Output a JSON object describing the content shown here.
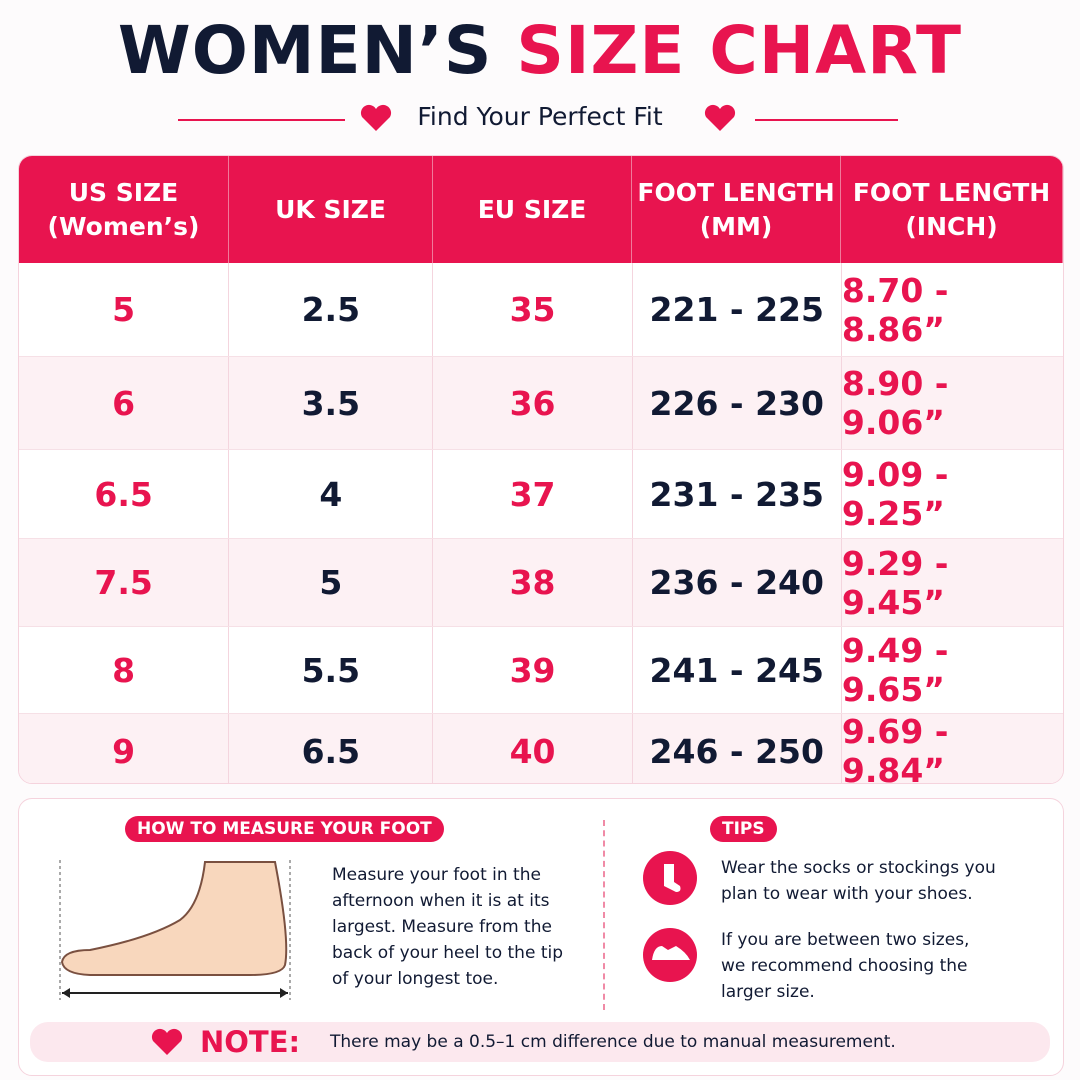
{
  "title": {
    "part1": "WOMEN’S",
    "part2": "SIZE CHART"
  },
  "subtitle": "Find Your Perfect Fit",
  "table": {
    "headers": [
      [
        "US SIZE",
        "(Women’s)"
      ],
      [
        "UK SIZE"
      ],
      [
        "EU SIZE"
      ],
      [
        "FOOT LENGTH",
        "(MM)"
      ],
      [
        "FOOT LENGTH",
        "(INCH)"
      ]
    ],
    "rows": [
      [
        "5",
        "2.5",
        "35",
        "221 - 225",
        "8.70 - 8.86”"
      ],
      [
        "6",
        "3.5",
        "36",
        "226 - 230",
        "8.90 - 9.06”"
      ],
      [
        "6.5",
        "4",
        "37",
        "231 - 235",
        "9.09 - 9.25”"
      ],
      [
        "7.5",
        "5",
        "38",
        "236 - 240",
        "9.29 - 9.45”"
      ],
      [
        "8",
        "5.5",
        "39",
        "241 - 245",
        "9.49 - 9.65”"
      ],
      [
        "9",
        "6.5",
        "40",
        "246 - 250",
        "9.69 - 9.84”"
      ]
    ]
  },
  "measure": {
    "heading": "HOW TO MEASURE YOUR FOOT",
    "text": "Measure your foot in the afternoon when it is at its largest. Measure from the back of your heel to the tip of your longest toe."
  },
  "tips": {
    "heading": "TIPS",
    "items": [
      "Wear the socks or stockings you plan to wear with your shoes.",
      "If you are between two sizes, we recommend choosing the larger size."
    ]
  },
  "note": {
    "label": "NOTE:",
    "text": "There may be a 0.5–1 cm difference due to manual measurement."
  }
}
